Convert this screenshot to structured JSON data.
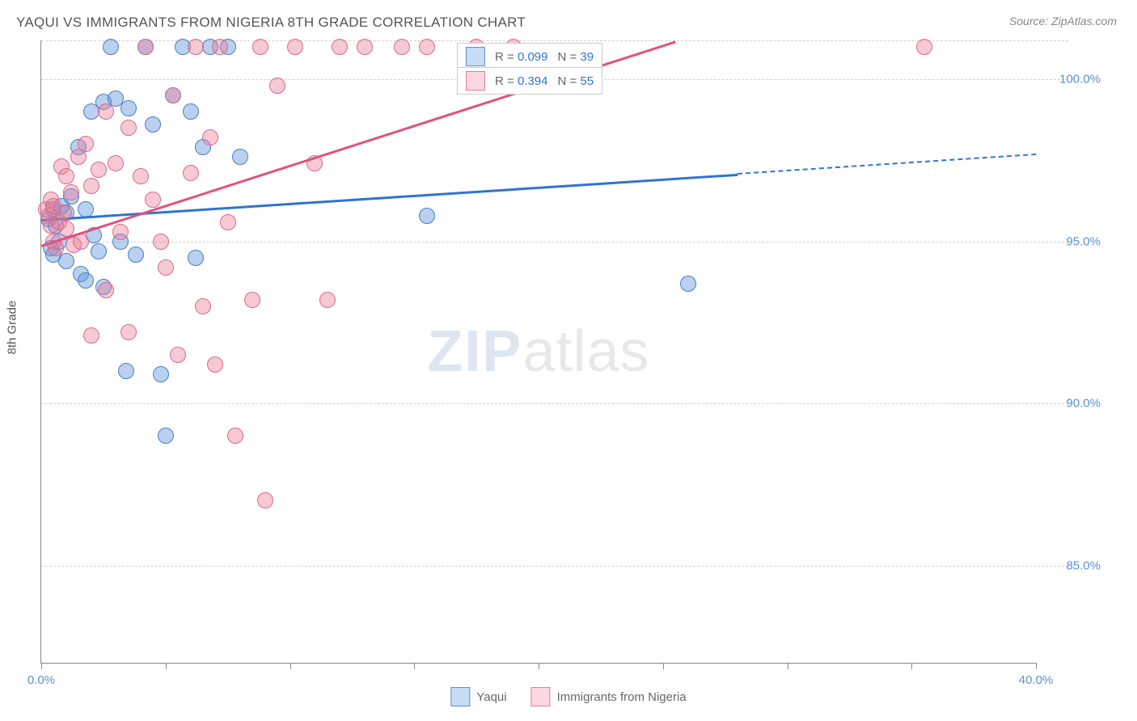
{
  "title": "YAQUI VS IMMIGRANTS FROM NIGERIA 8TH GRADE CORRELATION CHART",
  "source_label": "Source: ZipAtlas.com",
  "y_axis_label": "8th Grade",
  "watermark": {
    "part1": "ZIP",
    "part2": "atlas"
  },
  "chart": {
    "type": "scatter",
    "background_color": "#ffffff",
    "grid_color": "#d0d0d0",
    "axis_color": "#888888",
    "tick_label_color": "#5b8fd6",
    "axis_label_color": "#555555",
    "title_color": "#555555",
    "title_fontsize": 17,
    "tick_fontsize": 15,
    "label_fontsize": 15,
    "point_radius": 9,
    "point_opacity": 0.45,
    "xlim": [
      0,
      40
    ],
    "ylim": [
      82,
      101.2
    ],
    "x_ticks": [
      0,
      5,
      10,
      15,
      20,
      25,
      30,
      35,
      40
    ],
    "x_tick_labels": {
      "0": "0.0%",
      "40": "40.0%"
    },
    "y_grid": [
      85,
      90,
      95,
      100,
      101.2
    ],
    "y_tick_labels": {
      "85": "85.0%",
      "90": "90.0%",
      "95": "95.0%",
      "100": "100.0%"
    },
    "series": [
      {
        "name": "Yaqui",
        "color_fill": "rgba(100,150,220,0.45)",
        "color_stroke": "#4a7fc4",
        "swatch_fill": "#c7ddf5",
        "swatch_border": "#5b8fd6",
        "R": "0.099",
        "N": "39",
        "trend": {
          "x1": 0,
          "y1": 95.7,
          "x2_solid": 28,
          "y2_solid": 97.1,
          "x2_dash": 40,
          "y2_dash": 97.7,
          "color": "#2f74d0"
        },
        "points": [
          [
            0.3,
            95.7
          ],
          [
            0.4,
            94.8
          ],
          [
            0.5,
            94.6
          ],
          [
            0.5,
            96.0
          ],
          [
            0.6,
            95.5
          ],
          [
            0.7,
            95.0
          ],
          [
            0.8,
            96.1
          ],
          [
            1.0,
            95.9
          ],
          [
            1.0,
            94.4
          ],
          [
            1.2,
            96.4
          ],
          [
            1.5,
            97.9
          ],
          [
            1.6,
            94.0
          ],
          [
            1.8,
            96.0
          ],
          [
            1.8,
            93.8
          ],
          [
            2.0,
            99.0
          ],
          [
            2.1,
            95.2
          ],
          [
            2.3,
            94.7
          ],
          [
            2.5,
            99.3
          ],
          [
            2.5,
            93.6
          ],
          [
            2.8,
            101.0
          ],
          [
            3.0,
            99.4
          ],
          [
            3.2,
            95.0
          ],
          [
            3.4,
            91.0
          ],
          [
            3.5,
            99.1
          ],
          [
            3.8,
            94.6
          ],
          [
            4.2,
            101.0
          ],
          [
            4.5,
            98.6
          ],
          [
            4.8,
            90.9
          ],
          [
            5.0,
            89.0
          ],
          [
            5.3,
            99.5
          ],
          [
            5.7,
            101.0
          ],
          [
            6.0,
            99.0
          ],
          [
            6.2,
            94.5
          ],
          [
            6.5,
            97.9
          ],
          [
            6.8,
            101.0
          ],
          [
            7.5,
            101.0
          ],
          [
            8.0,
            97.6
          ],
          [
            15.5,
            95.8
          ],
          [
            26.0,
            93.7
          ]
        ]
      },
      {
        "name": "Immigrants from Nigeria",
        "color_fill": "rgba(235,120,150,0.40)",
        "color_stroke": "#d96a8c",
        "swatch_fill": "#fbd7e1",
        "swatch_border": "#e77a9c",
        "R": "0.394",
        "N": "55",
        "trend": {
          "x1": 0,
          "y1": 94.9,
          "x2_solid": 25.5,
          "y2_solid": 101.2,
          "x2_dash": 25.5,
          "y2_dash": 101.2,
          "color": "#e0527c"
        },
        "points": [
          [
            0.2,
            96.0
          ],
          [
            0.3,
            95.8
          ],
          [
            0.4,
            95.5
          ],
          [
            0.4,
            96.3
          ],
          [
            0.5,
            95.0
          ],
          [
            0.5,
            96.1
          ],
          [
            0.6,
            94.8
          ],
          [
            0.7,
            95.6
          ],
          [
            0.8,
            97.3
          ],
          [
            0.9,
            95.9
          ],
          [
            1.0,
            97.0
          ],
          [
            1.0,
            95.4
          ],
          [
            1.2,
            96.5
          ],
          [
            1.3,
            94.9
          ],
          [
            1.5,
            97.6
          ],
          [
            1.6,
            95.0
          ],
          [
            1.8,
            98.0
          ],
          [
            2.0,
            96.7
          ],
          [
            2.0,
            92.1
          ],
          [
            2.3,
            97.2
          ],
          [
            2.6,
            93.5
          ],
          [
            2.6,
            99.0
          ],
          [
            3.0,
            97.4
          ],
          [
            3.2,
            95.3
          ],
          [
            3.5,
            92.2
          ],
          [
            3.5,
            98.5
          ],
          [
            4.0,
            97.0
          ],
          [
            4.2,
            101.0
          ],
          [
            4.5,
            96.3
          ],
          [
            4.8,
            95.0
          ],
          [
            5.0,
            94.2
          ],
          [
            5.3,
            99.5
          ],
          [
            5.5,
            91.5
          ],
          [
            6.0,
            97.1
          ],
          [
            6.2,
            101.0
          ],
          [
            6.5,
            93.0
          ],
          [
            6.8,
            98.2
          ],
          [
            7.0,
            91.2
          ],
          [
            7.2,
            101.0
          ],
          [
            7.5,
            95.6
          ],
          [
            7.8,
            89.0
          ],
          [
            8.5,
            93.2
          ],
          [
            8.8,
            101.0
          ],
          [
            9.0,
            87.0
          ],
          [
            9.5,
            99.8
          ],
          [
            10.2,
            101.0
          ],
          [
            11.0,
            97.4
          ],
          [
            11.5,
            93.2
          ],
          [
            12.0,
            101.0
          ],
          [
            13.0,
            101.0
          ],
          [
            14.5,
            101.0
          ],
          [
            15.5,
            101.0
          ],
          [
            17.5,
            101.0
          ],
          [
            19.0,
            101.0
          ],
          [
            35.5,
            101.0
          ]
        ]
      }
    ],
    "legend_stats": {
      "R_label": "R =",
      "N_label": "N =",
      "value_color": "#2f74d0",
      "text_color": "#666666",
      "box_border": "#cccccc",
      "box_bg": "#ffffff"
    },
    "bottom_legend_labels": [
      "Yaqui",
      "Immigrants from Nigeria"
    ]
  }
}
